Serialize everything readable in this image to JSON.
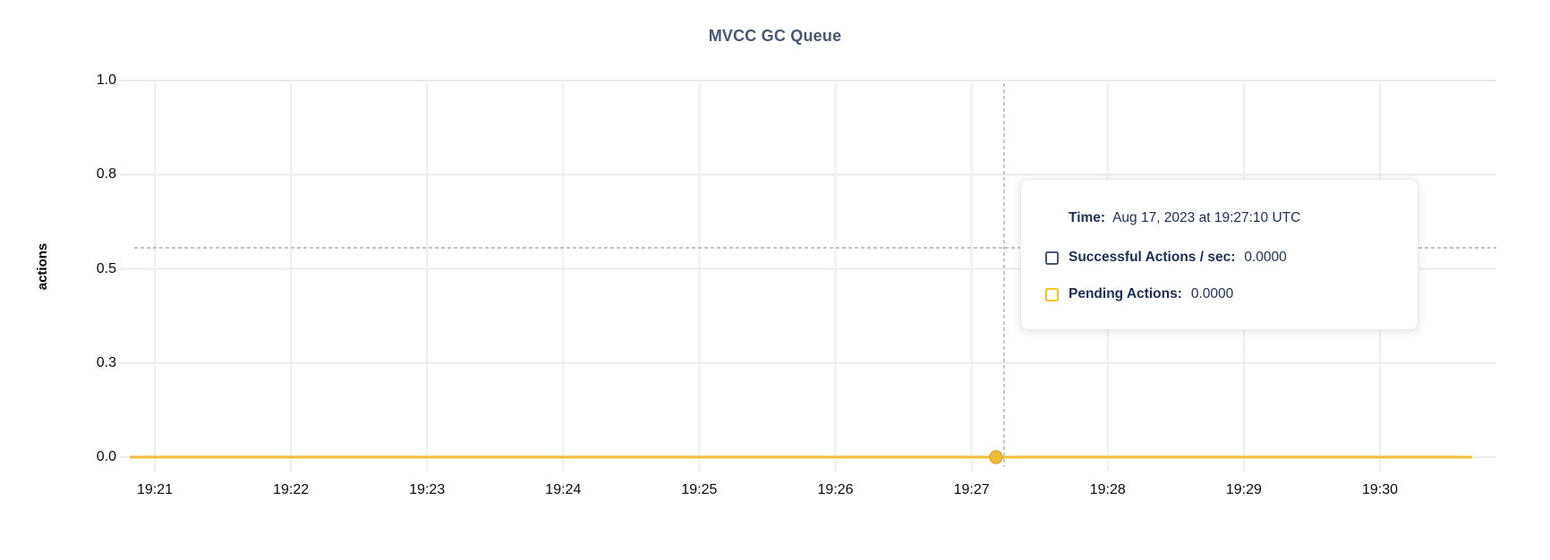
{
  "chart": {
    "title": "MVCC GC Queue",
    "y_axis_label": "actions",
    "y_ticks": [
      "1.0",
      "0.8",
      "0.5",
      "0.3",
      "0.0"
    ],
    "x_ticks": [
      "19:21",
      "19:22",
      "19:23",
      "19:24",
      "19:25",
      "19:26",
      "19:27",
      "19:28",
      "19:29",
      "19:30"
    ]
  },
  "tooltip": {
    "time_label": "Time:",
    "time_value": "Aug 17, 2023 at 19:27:10 UTC",
    "series": [
      {
        "label": "Successful Actions / sec:",
        "value": "0.0000",
        "color": "#475872"
      },
      {
        "label": "Pending Actions:",
        "value": "0.0000",
        "color": "#F5C526"
      }
    ]
  },
  "colors": {
    "title": "#475872",
    "tooltip_text": "#1C2F52",
    "successful_series": "#475872",
    "pending_series": "#EFBE37",
    "crosshair": "#97A3B4",
    "gridline": "#ECECEC",
    "axis_text": "#0A0A0A"
  },
  "chart_data": {
    "type": "line",
    "title": "MVCC GC Queue",
    "xlabel": "",
    "ylabel": "actions",
    "x": [
      "19:21",
      "19:22",
      "19:23",
      "19:24",
      "19:25",
      "19:26",
      "19:27",
      "19:28",
      "19:29",
      "19:30"
    ],
    "series": [
      {
        "name": "Successful Actions / sec",
        "color": "#475872",
        "values": [
          0,
          0,
          0,
          0,
          0,
          0,
          0,
          0,
          0,
          0
        ]
      },
      {
        "name": "Pending Actions",
        "color": "#EFBE37",
        "values": [
          0,
          0,
          0,
          0,
          0,
          0,
          0,
          0,
          0,
          0
        ]
      }
    ],
    "ylim": [
      0,
      1.0
    ],
    "y_tick_values": [
      0,
      0.25,
      0.5,
      0.75,
      1.0
    ],
    "y_tick_labels": [
      "0.0",
      "0.3",
      "0.5",
      "0.8",
      "1.0"
    ],
    "grid": true,
    "legend_position": "none",
    "hover_point": {
      "time": "Aug 17, 2023 at 19:27:10 UTC",
      "values": {
        "Successful Actions / sec": 0.0,
        "Pending Actions": 0.0
      }
    }
  }
}
